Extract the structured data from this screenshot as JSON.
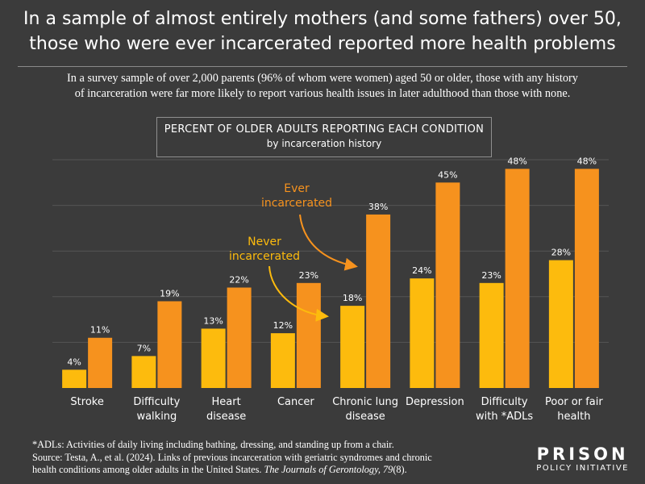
{
  "header": {
    "title_line1": "In a sample of almost entirely mothers (and some fathers) over 50,",
    "title_line2": "those who were ever incarcerated reported more health problems",
    "subtitle_line1": "In a survey sample of over 2,000 parents (96% of whom were women) aged 50 or older, those with any history",
    "subtitle_line2": "of incarceration were far more likely to report various health issues in later adulthood than those with none."
  },
  "legend_box": {
    "title": "PERCENT OF OLDER ADULTS REPORTING EACH CONDITION",
    "subtitle": "by incarceration history"
  },
  "annotations": {
    "ever_line1": "Ever",
    "ever_line2": "incarcerated",
    "never_line1": "Never",
    "never_line2": "incarcerated"
  },
  "footnote": {
    "line1": "*ADLs: Activities of daily living including bathing, dressing, and standing up from a chair.",
    "line2": "Source: Testa, A., et al. (2024). Links of previous incarceration with geriatric syndromes and chronic",
    "line3_plain": "health conditions among older adults in the United States. ",
    "line3_italic": "The Journals of Gerontology, 79",
    "line3_end": "(8)."
  },
  "logo": {
    "line1": "PRISON",
    "line2": "POLICY INITIATIVE"
  },
  "colors": {
    "background": "#3b3b3b",
    "never": "#fdbb0d",
    "ever": "#f6921e",
    "grid": "#555555",
    "text": "#ffffff"
  },
  "chart_data": {
    "type": "bar",
    "categories": [
      [
        "Stroke"
      ],
      [
        "Difficulty",
        "walking"
      ],
      [
        "Heart",
        "disease"
      ],
      [
        "Cancer"
      ],
      [
        "Chronic lung",
        "disease"
      ],
      [
        "Depression"
      ],
      [
        "Difficulty",
        "with *ADLs"
      ],
      [
        "Poor or fair",
        "health"
      ]
    ],
    "series": [
      {
        "name": "Never incarcerated",
        "values": [
          4,
          7,
          13,
          12,
          18,
          24,
          23,
          28
        ]
      },
      {
        "name": "Ever incarcerated",
        "values": [
          11,
          19,
          22,
          23,
          38,
          45,
          48,
          48
        ]
      }
    ],
    "value_suffix": "%",
    "ylim": [
      0,
      50
    ],
    "grid": true
  }
}
